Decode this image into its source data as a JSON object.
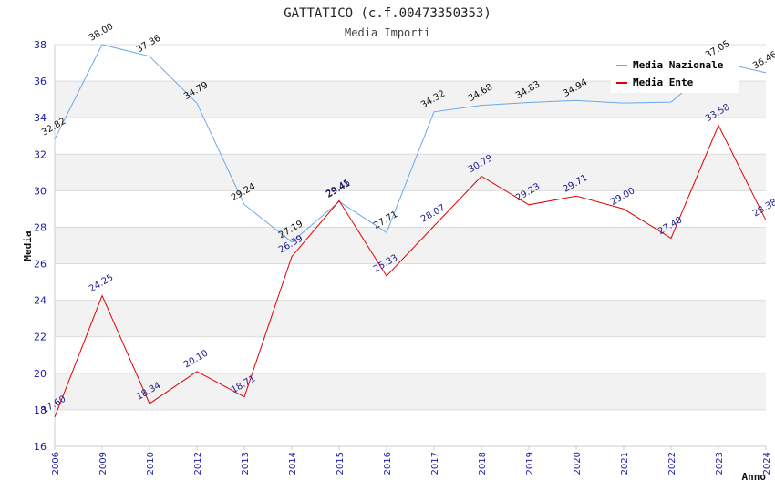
{
  "chart_data": {
    "type": "line",
    "title": "GATTATICO (c.f.00473350353)",
    "subtitle": "Media Importi",
    "xlabel": "Anno",
    "ylabel": "Media",
    "categories": [
      "2006",
      "2009",
      "2010",
      "2012",
      "2013",
      "2014",
      "2015",
      "2016",
      "2017",
      "2018",
      "2019",
      "2020",
      "2021",
      "2022",
      "2023",
      "2024"
    ],
    "ylim": [
      16,
      38
    ],
    "yticks": [
      16,
      18,
      20,
      22,
      24,
      26,
      28,
      30,
      32,
      34,
      36,
      38
    ],
    "grid": true,
    "legend_position": "top-right",
    "series": [
      {
        "name": "Media Nazionale",
        "color": "#6aa9e6",
        "values": [
          32.82,
          38.0,
          37.36,
          34.79,
          29.24,
          27.19,
          29.41,
          27.71,
          34.32,
          34.68,
          34.83,
          34.94,
          34.8,
          34.85,
          37.05,
          36.46
        ],
        "labels": [
          "32.82",
          "38.00",
          "37.36",
          "34.79",
          "29.24",
          "27.19",
          "29.41",
          "27.71",
          "34.32",
          "34.68",
          "34.83",
          "34.94",
          "",
          "",
          "37.05",
          "36.46"
        ]
      },
      {
        "name": "Media Ente",
        "color": "#e00000",
        "values": [
          17.6,
          24.25,
          18.34,
          20.1,
          18.71,
          26.39,
          29.45,
          25.33,
          28.07,
          30.79,
          29.23,
          29.71,
          29.0,
          27.4,
          33.58,
          28.38
        ],
        "labels": [
          "17.60",
          "24.25",
          "18.34",
          "20.10",
          "18.71",
          "26.39",
          "29.45",
          "25.33",
          "28.07",
          "30.79",
          "29.23",
          "29.71",
          "29.00",
          "27.40",
          "33.58",
          "28.38"
        ]
      }
    ]
  }
}
